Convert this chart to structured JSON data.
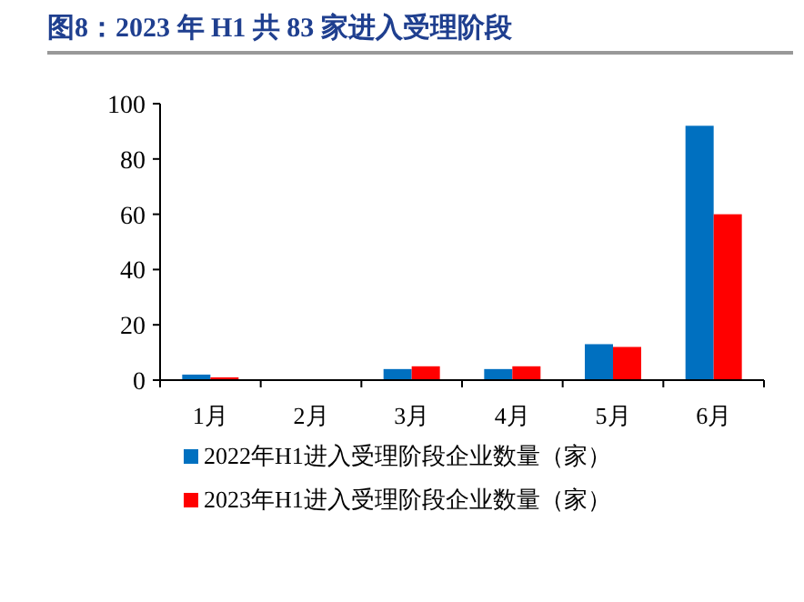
{
  "chart_data": {
    "type": "bar",
    "title": "图8：2023 年 H1 共 83 家进入受理阶段",
    "categories": [
      "1月",
      "2月",
      "3月",
      "4月",
      "5月",
      "6月"
    ],
    "series": [
      {
        "name": "2022年H1进入受理阶段企业数量（家）",
        "color": "#0070c0",
        "values": [
          2,
          0,
          4,
          4,
          13,
          92
        ]
      },
      {
        "name": "2023年H1进入受理阶段企业数量（家）",
        "color": "#ff0000",
        "values": [
          1,
          0,
          5,
          5,
          12,
          60
        ]
      }
    ],
    "ylim": [
      0,
      100
    ],
    "yticks": [
      0,
      20,
      40,
      60,
      80,
      100
    ],
    "legend": "bottom",
    "grid": false
  }
}
